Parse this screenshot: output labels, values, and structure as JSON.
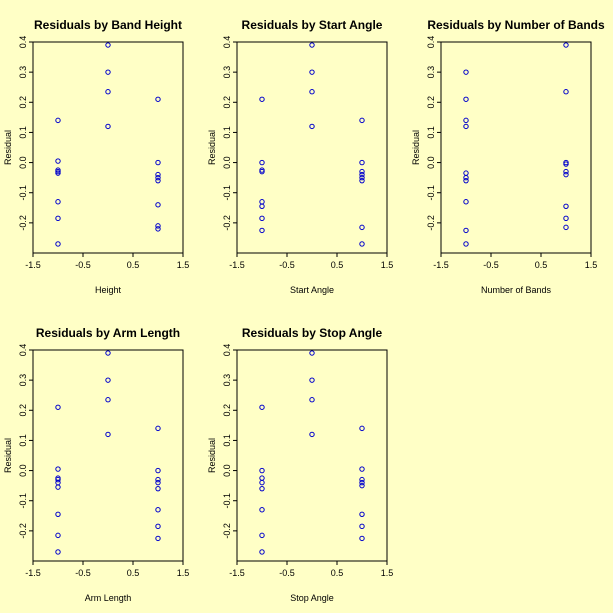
{
  "figure": {
    "background": "#ffffc6",
    "point_color": "#0000cc"
  },
  "chart_data": [
    {
      "type": "scatter",
      "title": "Residuals by Band Height",
      "xlabel": "Height",
      "ylabel": "Residual",
      "xlim": [
        -1.5,
        1.5
      ],
      "ylim": [
        -0.3,
        0.4
      ],
      "x_ticks": [
        "-1.5",
        "-0.5",
        "0.5",
        "1.5"
      ],
      "y_ticks": [
        "-0.2",
        "-0.1",
        "0.0",
        "0.1",
        "0.2",
        "0.3",
        "0.4"
      ],
      "grid": false,
      "points": [
        [
          -1,
          0.14
        ],
        [
          -1,
          0.005
        ],
        [
          -1,
          -0.025
        ],
        [
          -1,
          -0.03
        ],
        [
          -1,
          -0.035
        ],
        [
          -1,
          -0.13
        ],
        [
          -1,
          -0.185
        ],
        [
          -1,
          -0.27
        ],
        [
          0,
          0.39
        ],
        [
          0,
          0.3
        ],
        [
          0,
          0.235
        ],
        [
          0,
          0.12
        ],
        [
          1,
          0.21
        ],
        [
          1,
          0.0
        ],
        [
          1,
          -0.04
        ],
        [
          1,
          -0.05
        ],
        [
          1,
          -0.06
        ],
        [
          1,
          -0.14
        ],
        [
          1,
          -0.21
        ],
        [
          1,
          -0.22
        ]
      ]
    },
    {
      "type": "scatter",
      "title": "Residuals by Start Angle",
      "xlabel": "Start Angle",
      "ylabel": "Residual",
      "xlim": [
        -1.5,
        1.5
      ],
      "ylim": [
        -0.3,
        0.4
      ],
      "x_ticks": [
        "-1.5",
        "-0.5",
        "0.5",
        "1.5"
      ],
      "y_ticks": [
        "-0.2",
        "-0.1",
        "0.0",
        "0.1",
        "0.2",
        "0.3",
        "0.4"
      ],
      "grid": false,
      "points": [
        [
          -1,
          0.21
        ],
        [
          -1,
          0.0
        ],
        [
          -1,
          -0.025
        ],
        [
          -1,
          -0.03
        ],
        [
          -1,
          -0.13
        ],
        [
          -1,
          -0.145
        ],
        [
          -1,
          -0.185
        ],
        [
          -1,
          -0.225
        ],
        [
          0,
          0.39
        ],
        [
          0,
          0.3
        ],
        [
          0,
          0.235
        ],
        [
          0,
          0.12
        ],
        [
          1,
          0.14
        ],
        [
          1,
          0.0
        ],
        [
          1,
          -0.03
        ],
        [
          1,
          -0.04
        ],
        [
          1,
          -0.05
        ],
        [
          1,
          -0.06
        ],
        [
          1,
          -0.215
        ],
        [
          1,
          -0.27
        ]
      ]
    },
    {
      "type": "scatter",
      "title": "Residuals by Number of Bands",
      "xlabel": "Number of Bands",
      "ylabel": "Residual",
      "xlim": [
        -1.5,
        1.5
      ],
      "ylim": [
        -0.3,
        0.4
      ],
      "x_ticks": [
        "-1.5",
        "-0.5",
        "0.5",
        "1.5"
      ],
      "y_ticks": [
        "-0.2",
        "-0.1",
        "0.0",
        "0.1",
        "0.2",
        "0.3",
        "0.4"
      ],
      "grid": false,
      "points": [
        [
          -1,
          0.3
        ],
        [
          -1,
          0.21
        ],
        [
          -1,
          0.14
        ],
        [
          -1,
          0.12
        ],
        [
          -1,
          -0.035
        ],
        [
          -1,
          -0.05
        ],
        [
          -1,
          -0.06
        ],
        [
          -1,
          -0.13
        ],
        [
          -1,
          -0.225
        ],
        [
          -1,
          -0.27
        ],
        [
          1,
          0.39
        ],
        [
          1,
          0.235
        ],
        [
          1,
          0.0
        ],
        [
          1,
          -0.005
        ],
        [
          1,
          -0.03
        ],
        [
          1,
          -0.04
        ],
        [
          1,
          -0.145
        ],
        [
          1,
          -0.185
        ],
        [
          1,
          -0.215
        ]
      ]
    },
    {
      "type": "scatter",
      "title": "Residuals by Arm Length",
      "xlabel": "Arm Length",
      "ylabel": "Residual",
      "xlim": [
        -1.5,
        1.5
      ],
      "ylim": [
        -0.3,
        0.4
      ],
      "x_ticks": [
        "-1.5",
        "-0.5",
        "0.5",
        "1.5"
      ],
      "y_ticks": [
        "-0.2",
        "-0.1",
        "0.0",
        "0.1",
        "0.2",
        "0.3",
        "0.4"
      ],
      "grid": false,
      "points": [
        [
          -1,
          0.21
        ],
        [
          -1,
          0.005
        ],
        [
          -1,
          -0.025
        ],
        [
          -1,
          -0.03
        ],
        [
          -1,
          -0.04
        ],
        [
          -1,
          -0.055
        ],
        [
          -1,
          -0.145
        ],
        [
          -1,
          -0.215
        ],
        [
          -1,
          -0.27
        ],
        [
          0,
          0.39
        ],
        [
          0,
          0.3
        ],
        [
          0,
          0.235
        ],
        [
          0,
          0.12
        ],
        [
          1,
          0.14
        ],
        [
          1,
          0.0
        ],
        [
          1,
          -0.03
        ],
        [
          1,
          -0.04
        ],
        [
          1,
          -0.06
        ],
        [
          1,
          -0.13
        ],
        [
          1,
          -0.185
        ],
        [
          1,
          -0.225
        ]
      ]
    },
    {
      "type": "scatter",
      "title": "Residuals by Stop Angle",
      "xlabel": "Stop Angle",
      "ylabel": "Residual",
      "xlim": [
        -1.5,
        1.5
      ],
      "ylim": [
        -0.3,
        0.4
      ],
      "x_ticks": [
        "-1.5",
        "-0.5",
        "0.5",
        "1.5"
      ],
      "y_ticks": [
        "-0.2",
        "-0.1",
        "0.0",
        "0.1",
        "0.2",
        "0.3",
        "0.4"
      ],
      "grid": false,
      "points": [
        [
          -1,
          0.21
        ],
        [
          -1,
          0.0
        ],
        [
          -1,
          -0.025
        ],
        [
          -1,
          -0.04
        ],
        [
          -1,
          -0.06
        ],
        [
          -1,
          -0.13
        ],
        [
          -1,
          -0.215
        ],
        [
          -1,
          -0.27
        ],
        [
          0,
          0.39
        ],
        [
          0,
          0.3
        ],
        [
          0,
          0.235
        ],
        [
          0,
          0.12
        ],
        [
          1,
          0.14
        ],
        [
          1,
          0.005
        ],
        [
          1,
          -0.03
        ],
        [
          1,
          -0.04
        ],
        [
          1,
          -0.05
        ],
        [
          1,
          -0.145
        ],
        [
          1,
          -0.185
        ],
        [
          1,
          -0.225
        ]
      ]
    }
  ]
}
